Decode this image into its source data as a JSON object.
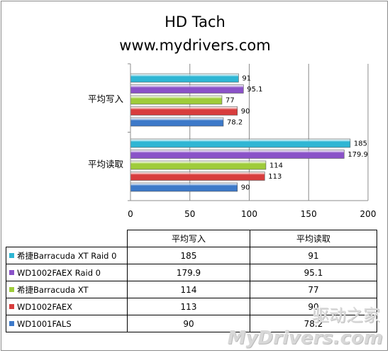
{
  "chart_data": {
    "type": "bar",
    "orientation": "horizontal",
    "title": "HD Tach",
    "subtitle": "www.mydrivers.com",
    "categories": [
      "平均写入",
      "平均读取"
    ],
    "series": [
      {
        "name": "希捷Barracuda XT Raid 0",
        "color": "#2fb6d4",
        "values": [
          91,
          185
        ]
      },
      {
        "name": "WD1002FAEX Raid 0",
        "color": "#8a52c8",
        "values": [
          95.1,
          179.9
        ]
      },
      {
        "name": "希捷Barracuda XT",
        "color": "#9fcc3a",
        "values": [
          77,
          114
        ]
      },
      {
        "name": "WD1002FAEX",
        "color": "#d83d3d",
        "values": [
          90,
          113
        ]
      },
      {
        "name": "WD1001FALS",
        "color": "#3d79c9",
        "values": [
          78.2,
          90
        ]
      }
    ],
    "xlim": [
      0,
      200
    ],
    "xticks": [
      0,
      50,
      100,
      150,
      200
    ],
    "grid": true,
    "legend": "data-table"
  },
  "table": {
    "headers": [
      "平均读取",
      "平均写入"
    ]
  },
  "watermark": {
    "line1": "驱动之家",
    "line2": "MyDrivers.com"
  }
}
